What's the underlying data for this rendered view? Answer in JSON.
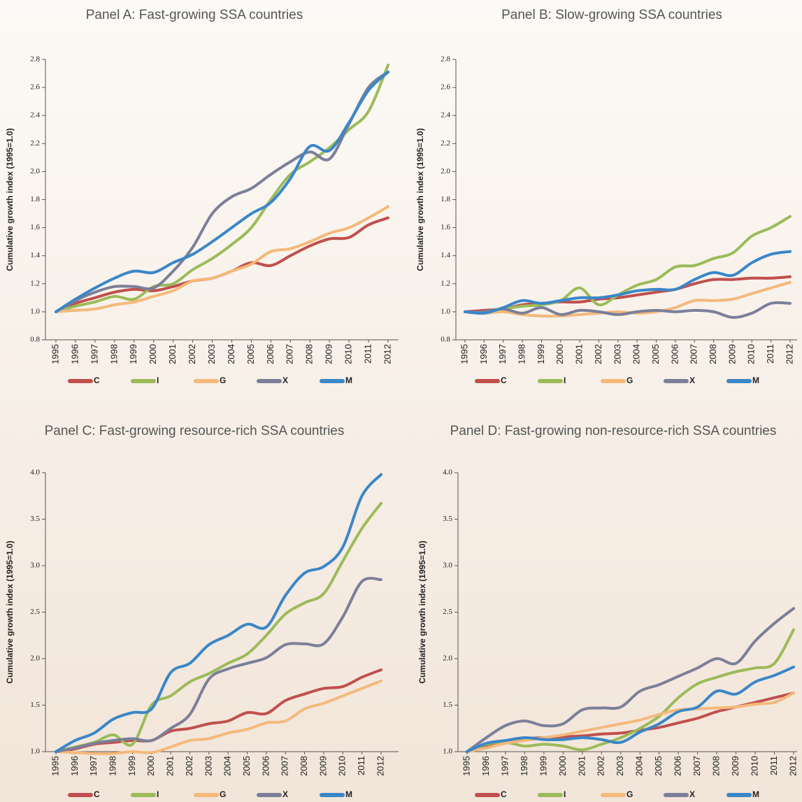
{
  "chart_data": [
    {
      "type": "line",
      "title": "Panel A: Fast-growing SSA countries",
      "y_label": "Cumulative growth index (1995=1.0)",
      "categories": [
        "1995",
        "1996",
        "1997",
        "1998",
        "1999",
        "2000",
        "2001",
        "2002",
        "2003",
        "2004",
        "2005",
        "2006",
        "2007",
        "2008",
        "2009",
        "2010",
        "2011",
        "2012"
      ],
      "ylim": [
        0.8,
        2.8
      ],
      "yticks": [
        0.8,
        {
          "value": 1,
          "label": "1.0"
        },
        1.2,
        1.4,
        1.6,
        1.8,
        {
          "value": 2,
          "label": "2.0"
        },
        2.2,
        2.4,
        2.6,
        2.8
      ],
      "series": [
        {
          "name": "C",
          "color": "#c0504d",
          "values": [
            1.0,
            1.06,
            1.1,
            1.14,
            1.16,
            1.15,
            1.18,
            1.22,
            1.24,
            1.29,
            1.35,
            1.33,
            1.4,
            1.47,
            1.52,
            1.53,
            1.62,
            1.67
          ]
        },
        {
          "name": "I",
          "color": "#9bbb59",
          "values": [
            1.0,
            1.04,
            1.07,
            1.11,
            1.09,
            1.18,
            1.2,
            1.3,
            1.38,
            1.48,
            1.6,
            1.8,
            1.98,
            2.07,
            2.17,
            2.3,
            2.43,
            2.76
          ]
        },
        {
          "name": "G",
          "color": "#f4b97b",
          "values": [
            1.0,
            1.01,
            1.02,
            1.05,
            1.07,
            1.11,
            1.15,
            1.22,
            1.24,
            1.29,
            1.34,
            1.43,
            1.45,
            1.5,
            1.56,
            1.6,
            1.67,
            1.75
          ]
        },
        {
          "name": "X",
          "color": "#7b7f99",
          "values": [
            1.0,
            1.08,
            1.14,
            1.18,
            1.18,
            1.17,
            1.29,
            1.46,
            1.7,
            1.82,
            1.88,
            1.98,
            2.07,
            2.14,
            2.09,
            2.34,
            2.6,
            2.71
          ]
        },
        {
          "name": "M",
          "color": "#3a87c8",
          "values": [
            1.0,
            1.09,
            1.17,
            1.24,
            1.29,
            1.28,
            1.35,
            1.41,
            1.5,
            1.6,
            1.7,
            1.78,
            1.95,
            2.18,
            2.15,
            2.35,
            2.58,
            2.71
          ]
        }
      ]
    },
    {
      "type": "line",
      "title": "Panel B: Slow-growing SSA countries",
      "y_label": "Cumulative growth index (1995=1.0)",
      "categories": [
        "1995",
        "1996",
        "1997",
        "1998",
        "1999",
        "2000",
        "2001",
        "2002",
        "2003",
        "2004",
        "2005",
        "2006",
        "2007",
        "2008",
        "2009",
        "2010",
        "2011",
        "2012"
      ],
      "ylim": [
        0.8,
        2.8
      ],
      "yticks": [
        0.8,
        {
          "value": 1,
          "label": "1.0"
        },
        1.2,
        1.4,
        1.6,
        1.8,
        {
          "value": 2,
          "label": "2.0"
        },
        2.2,
        2.4,
        2.6,
        2.8
      ],
      "series": [
        {
          "name": "C",
          "color": "#c0504d",
          "values": [
            1.0,
            1.01,
            1.02,
            1.05,
            1.06,
            1.07,
            1.07,
            1.09,
            1.1,
            1.12,
            1.14,
            1.16,
            1.2,
            1.23,
            1.23,
            1.24,
            1.24,
            1.25
          ]
        },
        {
          "name": "I",
          "color": "#9bbb59",
          "values": [
            1.0,
            0.99,
            1.02,
            1.04,
            1.05,
            1.08,
            1.17,
            1.05,
            1.12,
            1.19,
            1.23,
            1.32,
            1.33,
            1.38,
            1.42,
            1.54,
            1.6,
            1.68
          ]
        },
        {
          "name": "G",
          "color": "#f4b97b",
          "values": [
            1.0,
            0.99,
            1.0,
            0.98,
            0.97,
            0.97,
            0.98,
            0.99,
            1.0,
            0.99,
            1.0,
            1.03,
            1.08,
            1.08,
            1.09,
            1.13,
            1.17,
            1.21
          ]
        },
        {
          "name": "X",
          "color": "#7b7f99",
          "values": [
            1.0,
            1.0,
            1.02,
            0.99,
            1.03,
            0.98,
            1.01,
            1.0,
            0.98,
            1.0,
            1.01,
            1.0,
            1.01,
            1.0,
            0.96,
            0.99,
            1.06,
            1.06
          ]
        },
        {
          "name": "M",
          "color": "#3a87c8",
          "values": [
            1.0,
            0.99,
            1.03,
            1.08,
            1.06,
            1.08,
            1.1,
            1.1,
            1.12,
            1.15,
            1.16,
            1.16,
            1.23,
            1.28,
            1.26,
            1.35,
            1.41,
            1.43
          ]
        }
      ]
    },
    {
      "type": "line",
      "title": "Panel C: Fast-growing resource-rich SSA countries",
      "y_label": "Cumulative growth index (1995=1.0)",
      "categories": [
        "1995",
        "1996",
        "1997",
        "1998",
        "1999",
        "2000",
        "2001",
        "2002",
        "2003",
        "2004",
        "2005",
        "2006",
        "2007",
        "2008",
        "2009",
        "2010",
        "2011",
        "2012"
      ],
      "ylim": [
        1,
        4
      ],
      "yticks": [
        {
          "value": 1,
          "label": "1.0"
        },
        1.5,
        {
          "value": 2,
          "label": "2.0"
        },
        2.5,
        {
          "value": 3,
          "label": "3.0"
        },
        3.5,
        {
          "value": 4,
          "label": "4.0"
        }
      ],
      "series": [
        {
          "name": "C",
          "color": "#c0504d",
          "values": [
            1.0,
            1.03,
            1.08,
            1.1,
            1.12,
            1.12,
            1.22,
            1.25,
            1.3,
            1.33,
            1.42,
            1.41,
            1.55,
            1.62,
            1.68,
            1.7,
            1.8,
            1.88
          ]
        },
        {
          "name": "I",
          "color": "#9bbb59",
          "values": [
            1.0,
            1.05,
            1.1,
            1.18,
            1.08,
            1.5,
            1.6,
            1.75,
            1.84,
            1.95,
            2.05,
            2.25,
            2.48,
            2.6,
            2.7,
            3.05,
            3.4,
            3.67
          ]
        },
        {
          "name": "G",
          "color": "#f4b97b",
          "values": [
            1.0,
            0.99,
            0.98,
            0.98,
            1.0,
            0.99,
            1.05,
            1.12,
            1.14,
            1.2,
            1.24,
            1.31,
            1.33,
            1.46,
            1.52,
            1.6,
            1.68,
            1.76
          ]
        },
        {
          "name": "X",
          "color": "#7b7f99",
          "values": [
            1.0,
            1.04,
            1.09,
            1.12,
            1.14,
            1.12,
            1.25,
            1.4,
            1.78,
            1.89,
            1.95,
            2.01,
            2.15,
            2.16,
            2.16,
            2.45,
            2.83,
            2.85
          ]
        },
        {
          "name": "M",
          "color": "#3a87c8",
          "values": [
            1.0,
            1.12,
            1.2,
            1.35,
            1.42,
            1.46,
            1.85,
            1.95,
            2.15,
            2.25,
            2.37,
            2.34,
            2.68,
            2.92,
            2.99,
            3.2,
            3.75,
            3.98
          ]
        }
      ]
    },
    {
      "type": "line",
      "title": "Panel D: Fast-growing non-resource-rich SSA countries",
      "y_label": "Cumulative growth index (1995=1.0)",
      "categories": [
        "1995",
        "1996",
        "1997",
        "1998",
        "1999",
        "2000",
        "2001",
        "2002",
        "2003",
        "2004",
        "2005",
        "2006",
        "2007",
        "2008",
        "2009",
        "2010",
        "2011",
        "2012"
      ],
      "ylim": [
        1,
        4
      ],
      "yticks": [
        {
          "value": 1,
          "label": "1.0"
        },
        1.5,
        {
          "value": 2,
          "label": "2.0"
        },
        2.5,
        {
          "value": 3,
          "label": "3.0"
        },
        3.5,
        {
          "value": 4,
          "label": "4.0"
        }
      ],
      "series": [
        {
          "name": "C",
          "color": "#c0504d",
          "values": [
            1.0,
            1.05,
            1.1,
            1.14,
            1.15,
            1.16,
            1.17,
            1.19,
            1.2,
            1.23,
            1.26,
            1.31,
            1.36,
            1.43,
            1.48,
            1.53,
            1.58,
            1.63
          ]
        },
        {
          "name": "I",
          "color": "#9bbb59",
          "values": [
            1.0,
            1.08,
            1.1,
            1.06,
            1.08,
            1.06,
            1.02,
            1.08,
            1.15,
            1.25,
            1.38,
            1.58,
            1.73,
            1.8,
            1.86,
            1.9,
            1.95,
            2.31
          ]
        },
        {
          "name": "G",
          "color": "#f4b97b",
          "values": [
            1.0,
            1.04,
            1.09,
            1.12,
            1.15,
            1.18,
            1.22,
            1.26,
            1.3,
            1.34,
            1.4,
            1.45,
            1.46,
            1.47,
            1.48,
            1.51,
            1.53,
            1.63
          ]
        },
        {
          "name": "X",
          "color": "#7b7f99",
          "values": [
            1.0,
            1.15,
            1.28,
            1.33,
            1.28,
            1.3,
            1.45,
            1.47,
            1.48,
            1.65,
            1.72,
            1.81,
            1.9,
            2.0,
            1.95,
            2.19,
            2.38,
            2.54
          ]
        },
        {
          "name": "M",
          "color": "#3a87c8",
          "values": [
            1.0,
            1.09,
            1.12,
            1.15,
            1.13,
            1.13,
            1.15,
            1.13,
            1.1,
            1.21,
            1.3,
            1.43,
            1.48,
            1.65,
            1.62,
            1.75,
            1.82,
            1.91
          ]
        }
      ]
    }
  ]
}
